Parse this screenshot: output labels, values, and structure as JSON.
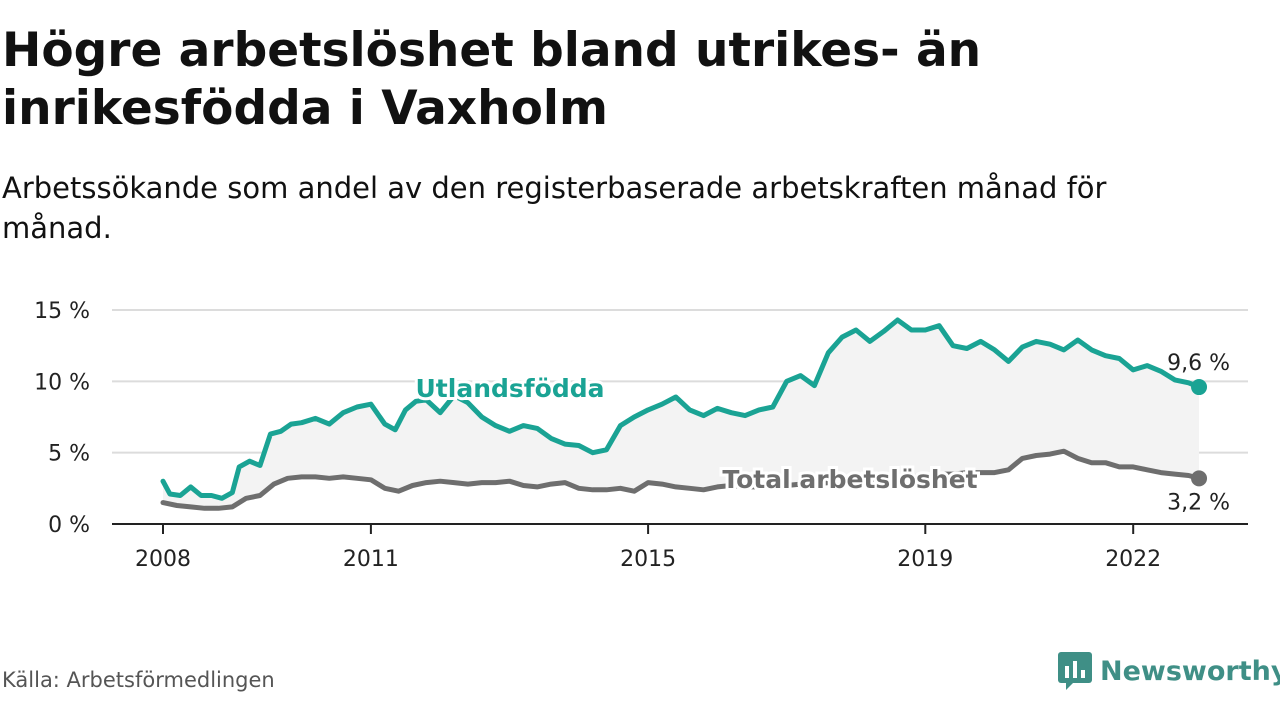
{
  "header": {
    "title": "Högre arbetslöshet bland utrikes- än inrikesfödda i Vaxholm",
    "subtitle": "Arbetssökande som andel av den registerbaserade arbetskraften månad för månad."
  },
  "footer": {
    "source": "Källa: Arbetsförmedlingen",
    "brand": "Newsworthy"
  },
  "colors": {
    "foreign": "#1aa394",
    "total": "#6e6e6e",
    "band": "#f3f3f3",
    "grid": "#dcdcdc",
    "brand": "#3f8f86"
  },
  "chart_data": {
    "type": "line",
    "title": "Högre arbetslöshet bland utrikes- än inrikesfödda i Vaxholm",
    "subtitle": "Arbetssökande som andel av den registerbaserade arbetskraften månad för månad.",
    "x_ticks": [
      "2008",
      "2011",
      "2015",
      "2019",
      "2022"
    ],
    "x_tick_values": [
      2008,
      2011,
      2015,
      2019,
      2022
    ],
    "xlim": [
      2008,
      2023
    ],
    "y_ticks": [
      "0 %",
      "5 %",
      "10 %",
      "15 %"
    ],
    "y_tick_values": [
      0,
      5,
      10,
      15
    ],
    "ylim": [
      0,
      15
    ],
    "grid": true,
    "series": [
      {
        "name": "Utlandsfödda",
        "end_label": "9,6 %",
        "x": [
          2008.0,
          2008.1,
          2008.25,
          2008.4,
          2008.55,
          2008.7,
          2008.85,
          2009.0,
          2009.1,
          2009.25,
          2009.4,
          2009.55,
          2009.7,
          2009.85,
          2010.0,
          2010.2,
          2010.4,
          2010.6,
          2010.8,
          2011.0,
          2011.2,
          2011.35,
          2011.5,
          2011.65,
          2011.8,
          2012.0,
          2012.2,
          2012.4,
          2012.6,
          2012.8,
          2013.0,
          2013.2,
          2013.4,
          2013.6,
          2013.8,
          2014.0,
          2014.2,
          2014.4,
          2014.6,
          2014.8,
          2015.0,
          2015.2,
          2015.4,
          2015.6,
          2015.8,
          2016.0,
          2016.2,
          2016.4,
          2016.6,
          2016.8,
          2017.0,
          2017.2,
          2017.4,
          2017.6,
          2017.8,
          2018.0,
          2018.2,
          2018.4,
          2018.6,
          2018.8,
          2019.0,
          2019.2,
          2019.4,
          2019.6,
          2019.8,
          2020.0,
          2020.2,
          2020.4,
          2020.6,
          2020.8,
          2021.0,
          2021.2,
          2021.4,
          2021.6,
          2021.8,
          2022.0,
          2022.2,
          2022.4,
          2022.6,
          2022.8,
          2022.95
        ],
        "values": [
          3.0,
          2.1,
          2.0,
          2.6,
          2.0,
          2.0,
          1.8,
          2.2,
          4.0,
          4.4,
          4.1,
          6.3,
          6.5,
          7.0,
          7.1,
          7.4,
          7.0,
          7.8,
          8.2,
          8.4,
          7.0,
          6.6,
          8.0,
          8.6,
          8.7,
          7.8,
          9.0,
          8.5,
          7.5,
          6.9,
          6.5,
          6.9,
          6.7,
          6.0,
          5.6,
          5.5,
          5.0,
          5.2,
          6.9,
          7.5,
          8.0,
          8.4,
          8.9,
          8.0,
          7.6,
          8.1,
          7.8,
          7.6,
          8.0,
          8.2,
          10.0,
          10.4,
          9.7,
          12.0,
          13.1,
          13.6,
          12.8,
          13.5,
          14.3,
          13.6,
          13.6,
          13.9,
          12.5,
          12.3,
          12.8,
          12.2,
          11.4,
          12.4,
          12.8,
          12.6,
          12.2,
          12.9,
          12.2,
          11.8,
          11.6,
          10.8,
          11.1,
          10.7,
          10.1,
          9.9,
          9.6
        ]
      },
      {
        "name": "Total arbetslöshet",
        "end_label": "3,2 %",
        "x": [
          2008.0,
          2008.2,
          2008.4,
          2008.6,
          2008.8,
          2009.0,
          2009.2,
          2009.4,
          2009.6,
          2009.8,
          2010.0,
          2010.2,
          2010.4,
          2010.6,
          2010.8,
          2011.0,
          2011.2,
          2011.4,
          2011.6,
          2011.8,
          2012.0,
          2012.2,
          2012.4,
          2012.6,
          2012.8,
          2013.0,
          2013.2,
          2013.4,
          2013.6,
          2013.8,
          2014.0,
          2014.2,
          2014.4,
          2014.6,
          2014.8,
          2015.0,
          2015.2,
          2015.4,
          2015.6,
          2015.8,
          2016.0,
          2016.2,
          2016.4,
          2016.6,
          2016.8,
          2017.0,
          2017.2,
          2017.4,
          2017.6,
          2017.8,
          2018.0,
          2018.2,
          2018.4,
          2018.6,
          2018.8,
          2019.0,
          2019.2,
          2019.4,
          2019.6,
          2019.8,
          2020.0,
          2020.2,
          2020.4,
          2020.6,
          2020.8,
          2021.0,
          2021.2,
          2021.4,
          2021.6,
          2021.8,
          2022.0,
          2022.2,
          2022.4,
          2022.6,
          2022.8,
          2022.95
        ],
        "values": [
          1.5,
          1.3,
          1.2,
          1.1,
          1.1,
          1.2,
          1.8,
          2.0,
          2.8,
          3.2,
          3.3,
          3.3,
          3.2,
          3.3,
          3.2,
          3.1,
          2.5,
          2.3,
          2.7,
          2.9,
          3.0,
          2.9,
          2.8,
          2.9,
          2.9,
          3.0,
          2.7,
          2.6,
          2.8,
          2.9,
          2.5,
          2.4,
          2.4,
          2.5,
          2.3,
          2.9,
          2.8,
          2.6,
          2.5,
          2.4,
          2.6,
          2.7,
          2.6,
          2.6,
          2.7,
          2.7,
          2.8,
          2.8,
          2.9,
          2.9,
          3.0,
          3.1,
          3.2,
          3.2,
          3.3,
          3.4,
          3.5,
          3.5,
          3.6,
          3.6,
          3.6,
          3.8,
          4.6,
          4.8,
          4.9,
          5.1,
          4.6,
          4.3,
          4.3,
          4.0,
          4.0,
          3.8,
          3.6,
          3.5,
          3.4,
          3.2
        ]
      }
    ]
  }
}
